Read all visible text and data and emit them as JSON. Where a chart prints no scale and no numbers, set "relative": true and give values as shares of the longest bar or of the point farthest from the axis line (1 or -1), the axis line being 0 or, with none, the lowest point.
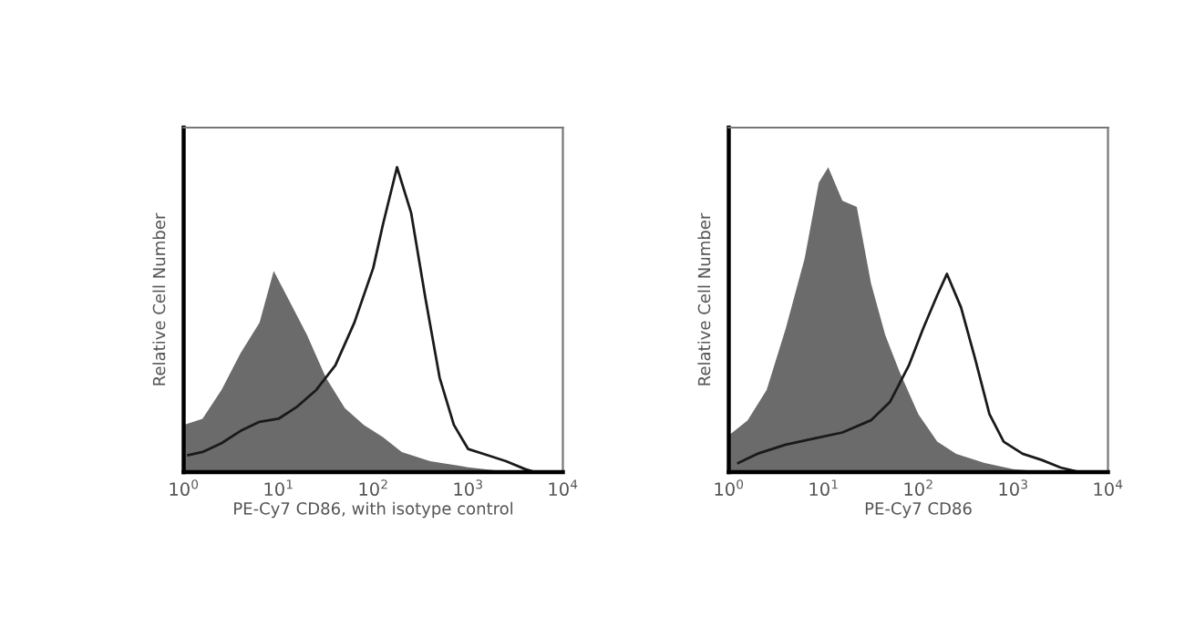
{
  "chart_data": [
    {
      "type": "area",
      "relative": true,
      "log": "x",
      "xlabel": "PE-Cy7 CD86, with isotype control",
      "ylabel": "Relative Cell Number",
      "grid": false,
      "xlim": [
        1,
        10000
      ],
      "xticks": [
        {
          "value": 1,
          "label": "10$^{0}$"
        },
        {
          "value": 10,
          "label": "10$^{1}$"
        },
        {
          "value": 100,
          "label": "10$^{2}$"
        },
        {
          "value": 1000,
          "label": "10$^{3}$"
        },
        {
          "value": 10000,
          "label": "10$^{4}$"
        }
      ],
      "series": [
        {
          "color": "#6b6b6b",
          "x": [
            1,
            1.58,
            2.51,
            3.98,
            6.31,
            8.91,
            12.6,
            20,
            31.6,
            50.1,
            79.4,
            126,
            200,
            398,
            1000,
            2000,
            4000
          ],
          "values": [
            0.155,
            0.175,
            0.27,
            0.39,
            0.49,
            0.66,
            0.57,
            0.45,
            0.31,
            0.21,
            0.155,
            0.115,
            0.066,
            0.036,
            0.016,
            0.005,
            0
          ]
        },
        {
          "type": "line",
          "color": "#1a1a1a",
          "x": [
            1.12,
            1.58,
            2.51,
            3.98,
            6.31,
            10,
            15.8,
            25.1,
            39.8,
            63.1,
            100,
            126,
            178,
            251,
            355,
            501,
            708,
            1000,
            1585,
            2512,
            3981,
            5012
          ],
          "values": [
            0.056,
            0.066,
            0.095,
            0.135,
            0.165,
            0.175,
            0.215,
            0.27,
            0.35,
            0.49,
            0.67,
            0.81,
            1.0,
            0.85,
            0.57,
            0.31,
            0.155,
            0.076,
            0.056,
            0.036,
            0.01,
            0
          ]
        }
      ]
    },
    {
      "type": "area",
      "relative": true,
      "log": "x",
      "xlabel": "PE-Cy7 CD86",
      "ylabel": "Relative Cell Number",
      "grid": false,
      "xlim": [
        1,
        10000
      ],
      "xticks": [
        {
          "value": 1,
          "label": "10$^{0}$"
        },
        {
          "value": 10,
          "label": "10$^{1}$"
        },
        {
          "value": 100,
          "label": "10$^{2}$"
        },
        {
          "value": 1000,
          "label": "10$^{3}$"
        },
        {
          "value": 10000,
          "label": "10$^{4}$"
        }
      ],
      "series": [
        {
          "color": "#6b6b6b",
          "x": [
            1,
            1.58,
            2.51,
            3.98,
            6.31,
            8.91,
            11.2,
            15.8,
            22.4,
            31.6,
            44.7,
            63.1,
            100,
            158,
            251,
            501,
            1000,
            2512
          ],
          "values": [
            0.12,
            0.17,
            0.27,
            0.47,
            0.7,
            0.95,
            1.0,
            0.89,
            0.87,
            0.62,
            0.45,
            0.33,
            0.19,
            0.1,
            0.06,
            0.03,
            0.01,
            0
          ]
        },
        {
          "type": "line",
          "color": "#1a1a1a",
          "x": [
            1.26,
            2.0,
            3.98,
            7.94,
            15.8,
            31.6,
            50.1,
            79.4,
            112,
            158,
            200,
            282,
            398,
            562,
            794,
            1259,
            1995,
            3162,
            5012
          ],
          "values": [
            0.03,
            0.06,
            0.09,
            0.11,
            0.13,
            0.17,
            0.23,
            0.35,
            0.47,
            0.58,
            0.65,
            0.54,
            0.37,
            0.19,
            0.1,
            0.06,
            0.04,
            0.015,
            0
          ]
        }
      ]
    }
  ]
}
